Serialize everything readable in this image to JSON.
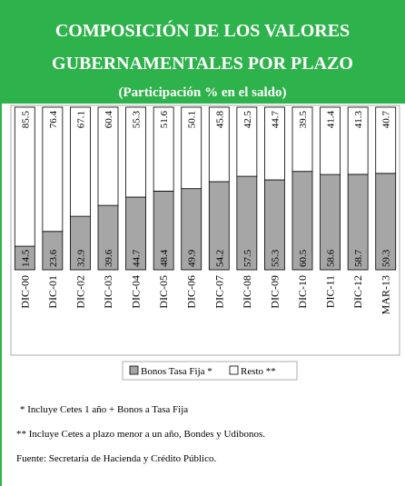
{
  "chart_data": {
    "type": "stacked-bar",
    "title": [
      "COMPOSICIÓN  DE LOS VALORES",
      "GUBERNAMENTALES POR PLAZO"
    ],
    "subtitle": "(Participación % en el saldo)",
    "categories": [
      "DIC-00",
      "DIC-01",
      "DIC-02",
      "DIC-03",
      "DIC-04",
      "DIC-05",
      "DIC-06",
      "DIC-07",
      "DIC-08",
      "DIC-09",
      "DIC-10",
      "DIC-11",
      "DIC-12",
      "MAR-13"
    ],
    "series": [
      {
        "name": "Bonos Tasa Fija *",
        "color": "#a6a6a6",
        "values": [
          14.5,
          23.6,
          32.9,
          39.6,
          44.7,
          48.4,
          49.9,
          54.2,
          57.5,
          55.3,
          60.5,
          58.6,
          58.7,
          59.3
        ]
      },
      {
        "name": "Resto **",
        "color": "#ffffff",
        "values": [
          85.5,
          76.4,
          67.1,
          60.4,
          55.3,
          51.6,
          50.1,
          45.8,
          42.5,
          44.7,
          39.5,
          41.4,
          41.3,
          40.7
        ]
      }
    ],
    "ylim": [
      0,
      100
    ],
    "header_color": "#2eb24b",
    "notes": [
      "* Incluye Cetes 1 año + Bonos a Tasa Fija",
      "** Incluye Cetes a plazo  menor  a un año, Bondes  y Udibonos.",
      "Fuente: Secretaría  de Hacienda  y Crédito Público."
    ]
  }
}
